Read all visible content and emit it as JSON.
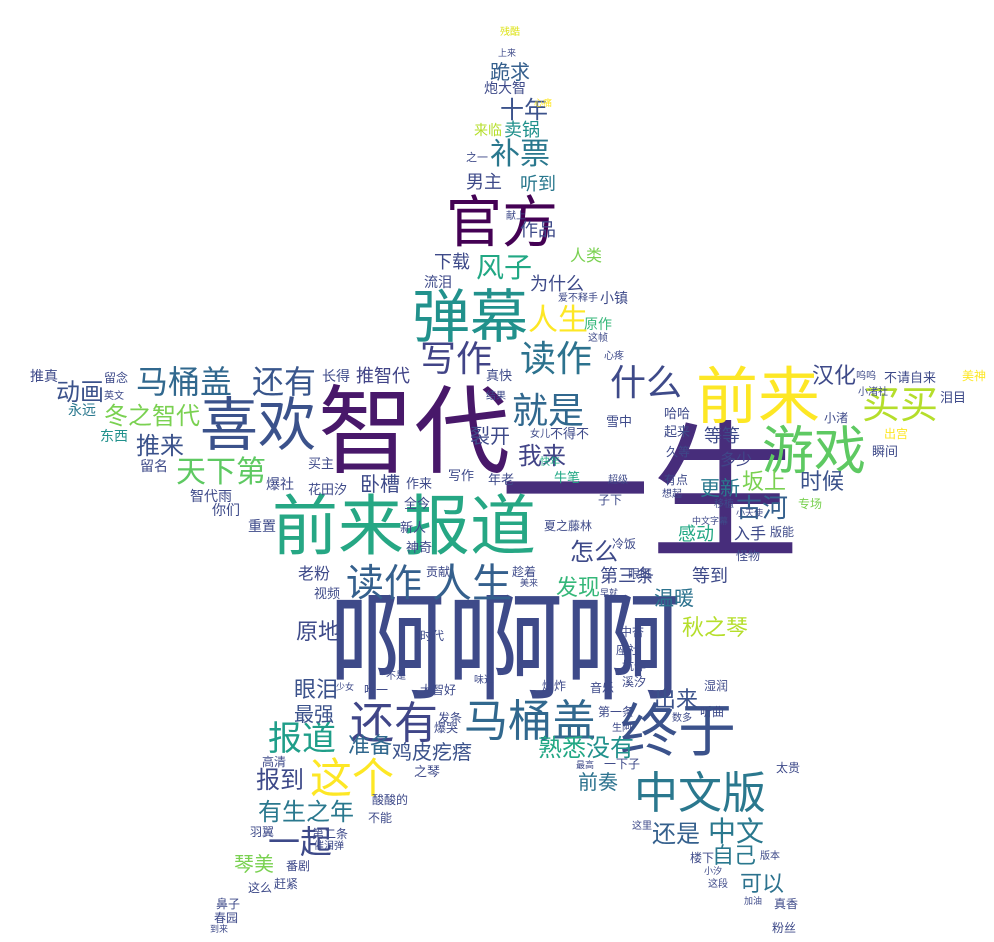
{
  "words": [
    {
      "text": "啊啊啊",
      "color": "#3e4a89"
    },
    {
      "text": "一生",
      "color": "#472d7b"
    },
    {
      "text": "智代",
      "color": "#48186a"
    },
    {
      "text": "前来报道",
      "color": "#26a784"
    },
    {
      "text": "喜欢",
      "color": "#3b528b"
    },
    {
      "text": "弹幕",
      "color": "#21918c"
    },
    {
      "text": "官方",
      "color": "#440154"
    },
    {
      "text": "前来",
      "color": "#fde725"
    },
    {
      "text": "游戏",
      "color": "#5ec962"
    },
    {
      "text": "终于",
      "color": "#3b528b"
    },
    {
      "text": "马桶盖",
      "color": "#31688e"
    },
    {
      "text": "中文版",
      "color": "#2a788e"
    },
    {
      "text": "还有",
      "color": "#404688"
    },
    {
      "text": "读作",
      "color": "#35608d"
    },
    {
      "text": "人生",
      "color": "#35608d"
    },
    {
      "text": "这个",
      "color": "#fde725"
    },
    {
      "text": "写作",
      "color": "#414487"
    },
    {
      "text": "读作",
      "color": "#2c728e"
    },
    {
      "text": "就是",
      "color": "#31688e"
    },
    {
      "text": "什么",
      "color": "#3e4a89"
    },
    {
      "text": "买买",
      "color": "#b5de2b"
    },
    {
      "text": "马桶盖",
      "color": "#31688e"
    },
    {
      "text": "还有",
      "color": "#39568c"
    },
    {
      "text": "人生",
      "color": "#fde725"
    },
    {
      "text": "风子",
      "color": "#22a884"
    },
    {
      "text": "补票",
      "color": "#2a788e"
    },
    {
      "text": "十年",
      "color": "#3b528b"
    },
    {
      "text": "跪求",
      "color": "#355f8d"
    },
    {
      "text": "报道",
      "color": "#1f9e89"
    },
    {
      "text": "动画",
      "color": "#3b528b"
    },
    {
      "text": "天下第",
      "color": "#5ec962"
    },
    {
      "text": "冬之智代",
      "color": "#7ad151"
    },
    {
      "text": "推来",
      "color": "#3b528b"
    },
    {
      "text": "一起",
      "color": "#3e4a89"
    },
    {
      "text": "有生之年",
      "color": "#2a788e"
    },
    {
      "text": "报到",
      "color": "#3e4a89"
    },
    {
      "text": "中文",
      "color": "#2a788e"
    },
    {
      "text": "还是",
      "color": "#35608d"
    },
    {
      "text": "熟悉",
      "color": "#22a884"
    },
    {
      "text": "没有",
      "color": "#21918c"
    },
    {
      "text": "准备",
      "color": "#31688e"
    },
    {
      "text": "鸡皮疙瘩",
      "color": "#3b528b"
    },
    {
      "text": "我来",
      "color": "#414487"
    },
    {
      "text": "怎么",
      "color": "#3e4a89"
    },
    {
      "text": "古河",
      "color": "#35608d"
    },
    {
      "text": "坂上",
      "color": "#7ad151"
    },
    {
      "text": "更新",
      "color": "#2a788e"
    },
    {
      "text": "时候",
      "color": "#3b528b"
    },
    {
      "text": "汉化",
      "color": "#3e4a89"
    },
    {
      "text": "原地",
      "color": "#3e4a89"
    },
    {
      "text": "眼泪",
      "color": "#3b528b"
    },
    {
      "text": "最强",
      "color": "#3b528b"
    },
    {
      "text": "可以",
      "color": "#2c728e"
    },
    {
      "text": "自己",
      "color": "#2a788e"
    },
    {
      "text": "前奏",
      "color": "#2c728e"
    },
    {
      "text": "琴美",
      "color": "#7ad151"
    },
    {
      "text": "温暖",
      "color": "#2c728e"
    },
    {
      "text": "秋之琴",
      "color": "#b5de2b"
    },
    {
      "text": "发现",
      "color": "#35b779"
    },
    {
      "text": "第三条",
      "color": "#3e4a89"
    },
    {
      "text": "出来",
      "color": "#3b528b"
    },
    {
      "text": "感动",
      "color": "#22a884"
    },
    {
      "text": "作品",
      "color": "#3e4a89"
    },
    {
      "text": "下载",
      "color": "#3e4a89"
    },
    {
      "text": "为什么",
      "color": "#3e4a89"
    },
    {
      "text": "男主",
      "color": "#3e4a89"
    },
    {
      "text": "听到",
      "color": "#2a788e"
    },
    {
      "text": "卖锅",
      "color": "#21918c"
    },
    {
      "text": "裂开",
      "color": "#3e4a89"
    },
    {
      "text": "卧槽",
      "color": "#3e4a89"
    },
    {
      "text": "等等",
      "color": "#3e4a89"
    },
    {
      "text": "多少",
      "color": "#404688"
    },
    {
      "text": "入手",
      "color": "#3e4a89"
    },
    {
      "text": "等到",
      "color": "#3e4a89"
    },
    {
      "text": "推智代",
      "color": "#414487"
    },
    {
      "text": "长得",
      "color": "#3e4a89"
    },
    {
      "text": "老粉",
      "color": "#3e4a89"
    },
    {
      "text": "人类",
      "color": "#7ad151"
    },
    {
      "text": "流泪",
      "color": "#3e4a89"
    },
    {
      "text": "炮大智",
      "color": "#3e4a89"
    },
    {
      "text": "残酷",
      "color": "#dde318"
    },
    {
      "text": "上来",
      "color": "#3e4a89"
    },
    {
      "text": "来临",
      "color": "#b5de2b"
    },
    {
      "text": "之一",
      "color": "#3e4a89"
    },
    {
      "text": "献上",
      "color": "#3e4a89"
    },
    {
      "text": "心痛",
      "color": "#fde725"
    },
    {
      "text": "爱不释手",
      "color": "#3e4a89"
    },
    {
      "text": "小镇",
      "color": "#3e4a89"
    },
    {
      "text": "原作",
      "color": "#35b779"
    },
    {
      "text": "这帧",
      "color": "#3e4a89"
    },
    {
      "text": "心疼",
      "color": "#3e4a89"
    },
    {
      "text": "推真",
      "color": "#3e4a89"
    },
    {
      "text": "留念",
      "color": "#3e4a89"
    },
    {
      "text": "英文",
      "color": "#3e4a89"
    },
    {
      "text": "永远",
      "color": "#2a788e"
    },
    {
      "text": "东西",
      "color": "#21918c"
    },
    {
      "text": "留名",
      "color": "#3e4a89"
    },
    {
      "text": "智代雨",
      "color": "#3e4a89"
    },
    {
      "text": "你们",
      "color": "#3e4a89"
    },
    {
      "text": "爆社",
      "color": "#3e4a89"
    },
    {
      "text": "花田汐",
      "color": "#3e4a89"
    },
    {
      "text": "买主",
      "color": "#3e4a89"
    },
    {
      "text": "重置",
      "color": "#3e4a89"
    },
    {
      "text": "视频",
      "color": "#3e4a89"
    },
    {
      "text": "贡献",
      "color": "#3e4a89"
    },
    {
      "text": "新人",
      "color": "#3e4a89"
    },
    {
      "text": "神奇",
      "color": "#3e4a89"
    },
    {
      "text": "全今",
      "color": "#3e4a89"
    },
    {
      "text": "作来",
      "color": "#3e4a89"
    },
    {
      "text": "写作",
      "color": "#3e4a89"
    },
    {
      "text": "年老",
      "color": "#3e4a89"
    },
    {
      "text": "牛笔",
      "color": "#22a884"
    },
    {
      "text": "快年",
      "color": "#22a884"
    },
    {
      "text": "真快",
      "color": "#3e4a89"
    },
    {
      "text": "结果",
      "color": "#3e4a89"
    },
    {
      "text": "女儿",
      "color": "#3e4a89"
    },
    {
      "text": "不得不",
      "color": "#3e4a89"
    },
    {
      "text": "雪中",
      "color": "#3e4a89"
    },
    {
      "text": "哈哈",
      "color": "#3e4a89"
    },
    {
      "text": "起来",
      "color": "#3e4a89"
    },
    {
      "text": "久等",
      "color": "#3e4a89"
    },
    {
      "text": "有点",
      "color": "#3e4a89"
    },
    {
      "text": "超级",
      "color": "#3e4a89"
    },
    {
      "text": "想起",
      "color": "#3e4a89"
    },
    {
      "text": "子下",
      "color": "#3e4a89"
    },
    {
      "text": "移植",
      "color": "#3e4a89"
    },
    {
      "text": "小天使",
      "color": "#3e4a89"
    },
    {
      "text": "中文字幕",
      "color": "#3e4a89"
    },
    {
      "text": "怪物",
      "color": "#3e4a89"
    },
    {
      "text": "版能",
      "color": "#3e4a89"
    },
    {
      "text": "专场",
      "color": "#7ad151"
    },
    {
      "text": "冷饭",
      "color": "#3e4a89"
    },
    {
      "text": "夏之藤林",
      "color": "#3e4a89"
    },
    {
      "text": "眼眶",
      "color": "#3e4a89"
    },
    {
      "text": "趁着",
      "color": "#3e4a89"
    },
    {
      "text": "早就",
      "color": "#3e4a89"
    },
    {
      "text": "美来",
      "color": "#3e4a89"
    },
    {
      "text": "中杏",
      "color": "#3e4a89"
    },
    {
      "text": "座社",
      "color": "#3e4a89"
    },
    {
      "text": "坑作",
      "color": "#3e4a89"
    },
    {
      "text": "溪汐",
      "color": "#3e4a89"
    },
    {
      "text": "爆炸",
      "color": "#3e4a89"
    },
    {
      "text": "音乐",
      "color": "#3e4a89"
    },
    {
      "text": "湿润",
      "color": "#3e4a89"
    },
    {
      "text": "听曲",
      "color": "#3e4a89"
    },
    {
      "text": "数多",
      "color": "#3e4a89"
    },
    {
      "text": "大智好",
      "color": "#3e4a89"
    },
    {
      "text": "味道",
      "color": "#3e4a89"
    },
    {
      "text": "发条",
      "color": "#3e4a89"
    },
    {
      "text": "第一条",
      "color": "#3e4a89"
    },
    {
      "text": "生阿",
      "color": "#3e4a89"
    },
    {
      "text": "爆哭",
      "color": "#3e4a89"
    },
    {
      "text": "唯一",
      "color": "#3e4a89"
    },
    {
      "text": "不是",
      "color": "#3e4a89"
    },
    {
      "text": "少女",
      "color": "#3e4a89"
    },
    {
      "text": "时代",
      "color": "#3e4a89"
    },
    {
      "text": "高清",
      "color": "#3e4a89"
    },
    {
      "text": "之琴",
      "color": "#3e4a89"
    },
    {
      "text": "酸酸的",
      "color": "#3e4a89"
    },
    {
      "text": "不能",
      "color": "#3e4a89"
    },
    {
      "text": "第二条",
      "color": "#3e4a89"
    },
    {
      "text": "催泪弹",
      "color": "#3e4a89"
    },
    {
      "text": "羽翼",
      "color": "#3e4a89"
    },
    {
      "text": "番剧",
      "color": "#3e4a89"
    },
    {
      "text": "赶紧",
      "color": "#3e4a89"
    },
    {
      "text": "这么",
      "color": "#3e4a89"
    },
    {
      "text": "鼻子",
      "color": "#3e4a89"
    },
    {
      "text": "春园",
      "color": "#3e4a89"
    },
    {
      "text": "到来",
      "color": "#3e4a89"
    },
    {
      "text": "一下子",
      "color": "#3e4a89"
    },
    {
      "text": "最高",
      "color": "#3e4a89"
    },
    {
      "text": "这里",
      "color": "#3e4a89"
    },
    {
      "text": "楼下",
      "color": "#3e4a89"
    },
    {
      "text": "小汐",
      "color": "#3e4a89"
    },
    {
      "text": "这段",
      "color": "#3e4a89"
    },
    {
      "text": "加油",
      "color": "#3e4a89"
    },
    {
      "text": "粉丝",
      "color": "#3e4a89"
    },
    {
      "text": "真香",
      "color": "#3e4a89"
    },
    {
      "text": "版本",
      "color": "#3e4a89"
    },
    {
      "text": "太贵",
      "color": "#3e4a89"
    },
    {
      "text": "泪目",
      "color": "#3e4a89"
    },
    {
      "text": "美神",
      "color": "#fde725"
    },
    {
      "text": "不请自来",
      "color": "#3e4a89"
    },
    {
      "text": "呜呜",
      "color": "#3e4a89"
    },
    {
      "text": "小渚社",
      "color": "#3e4a89"
    },
    {
      "text": "小渚",
      "color": "#3e4a89"
    },
    {
      "text": "出宫",
      "color": "#fde725"
    },
    {
      "text": "瞬间",
      "color": "#3e4a89"
    }
  ]
}
